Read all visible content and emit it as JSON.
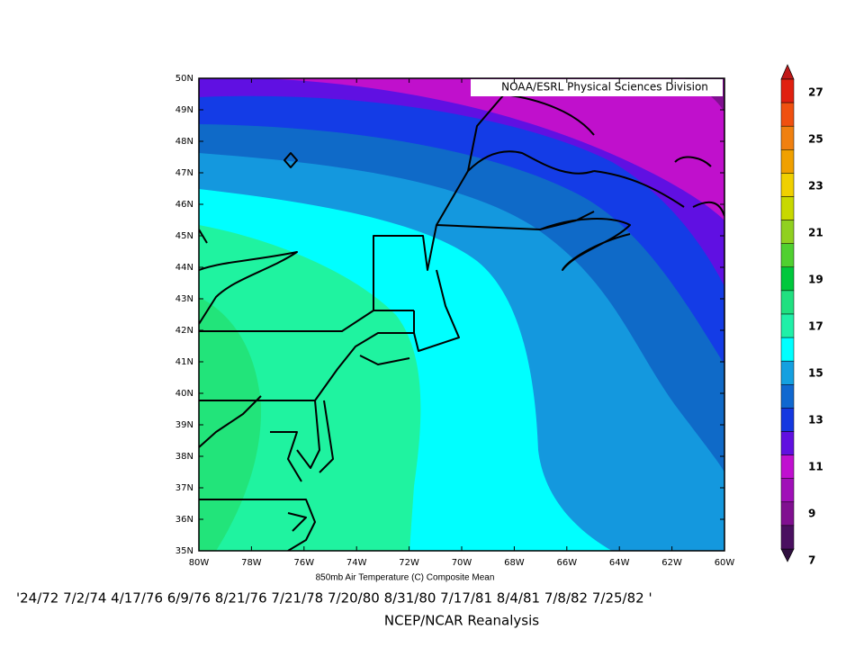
{
  "header": {
    "source_label": "NOAA/ESRL Physical Sciences Division"
  },
  "map": {
    "lat_labels": [
      "50N",
      "49N",
      "48N",
      "47N",
      "46N",
      "45N",
      "44N",
      "43N",
      "42N",
      "41N",
      "40N",
      "39N",
      "38N",
      "37N",
      "36N",
      "35N"
    ],
    "lon_labels": [
      "80W",
      "78W",
      "76W",
      "74W",
      "72W",
      "70W",
      "68W",
      "66W",
      "64W",
      "62W",
      "60W"
    ]
  },
  "colorbar": {
    "labels": [
      27,
      25,
      23,
      21,
      19,
      17,
      15,
      13,
      11,
      9,
      7
    ]
  },
  "caption": "850mb Air Temperature  (C) Composite Mean",
  "dates": "'24/72 7/2/74 4/17/76 6/9/76 8/21/76 7/21/78 7/20/80 8/31/80 7/17/81 8/4/81 7/8/82 7/25/82 '",
  "footer": "NCEP/NCAR Reanalysis"
}
